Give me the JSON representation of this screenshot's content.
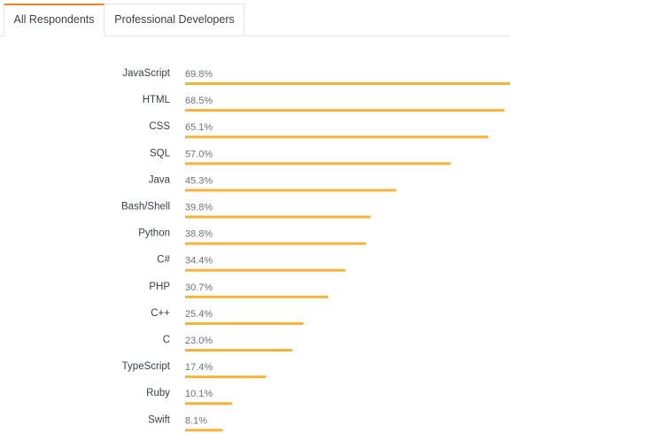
{
  "tabs": [
    {
      "label": "All Respondents",
      "active": true
    },
    {
      "label": "Professional Developers",
      "active": false
    }
  ],
  "colors": {
    "bar": "#f7b23b",
    "accent": "#f48024"
  },
  "chart_data": {
    "type": "bar",
    "orientation": "horizontal",
    "categories": [
      "JavaScript",
      "HTML",
      "CSS",
      "SQL",
      "Java",
      "Bash/Shell",
      "Python",
      "C#",
      "PHP",
      "C++",
      "C",
      "TypeScript",
      "Ruby",
      "Swift"
    ],
    "values": [
      69.8,
      68.5,
      65.1,
      57.0,
      45.3,
      39.8,
      38.8,
      34.4,
      30.7,
      25.4,
      23.0,
      17.4,
      10.1,
      8.1
    ],
    "value_labels": [
      "69.8%",
      "68.5%",
      "65.1%",
      "57.0%",
      "45.3%",
      "39.8%",
      "38.8%",
      "34.4%",
      "30.7%",
      "25.4%",
      "23.0%",
      "17.4%",
      "10.1%",
      "8.1%"
    ],
    "unit": "%",
    "xlim": [
      0,
      69.8
    ],
    "grid": false,
    "legend": "none"
  }
}
